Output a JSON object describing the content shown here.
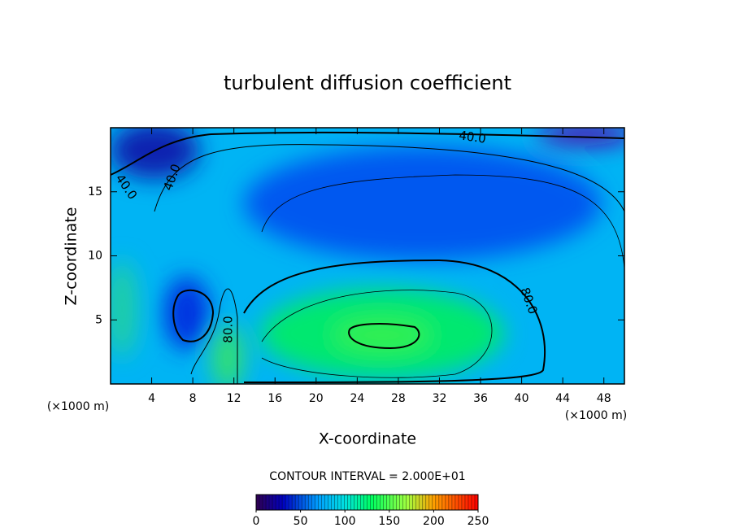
{
  "chart_data": {
    "type": "contour",
    "title": "turbulent diffusion coefficient",
    "x_label": "X-coordinate",
    "y_label": "Z-coordinate",
    "x_unit": "(×1000 m)",
    "xlim": [
      0,
      50
    ],
    "ylim": [
      0,
      20
    ],
    "xticks": [
      4,
      8,
      12,
      16,
      20,
      24,
      28,
      32,
      36,
      40,
      44,
      48
    ],
    "yticks": [
      5,
      10,
      15
    ],
    "contour_interval_text": "CONTOUR INTERVAL = 2.000E+01",
    "contour_labels": [
      {
        "value": 40,
        "label": "40.0"
      },
      {
        "value": 40,
        "label": "40.0"
      },
      {
        "value": 40,
        "label": "40.0"
      },
      {
        "value": 80,
        "label": "80.0"
      },
      {
        "value": 80,
        "label": "80.0"
      }
    ],
    "colorbar": {
      "clim": [
        0,
        250
      ],
      "ticks": [
        0,
        50,
        100,
        150,
        200,
        250
      ]
    }
  }
}
